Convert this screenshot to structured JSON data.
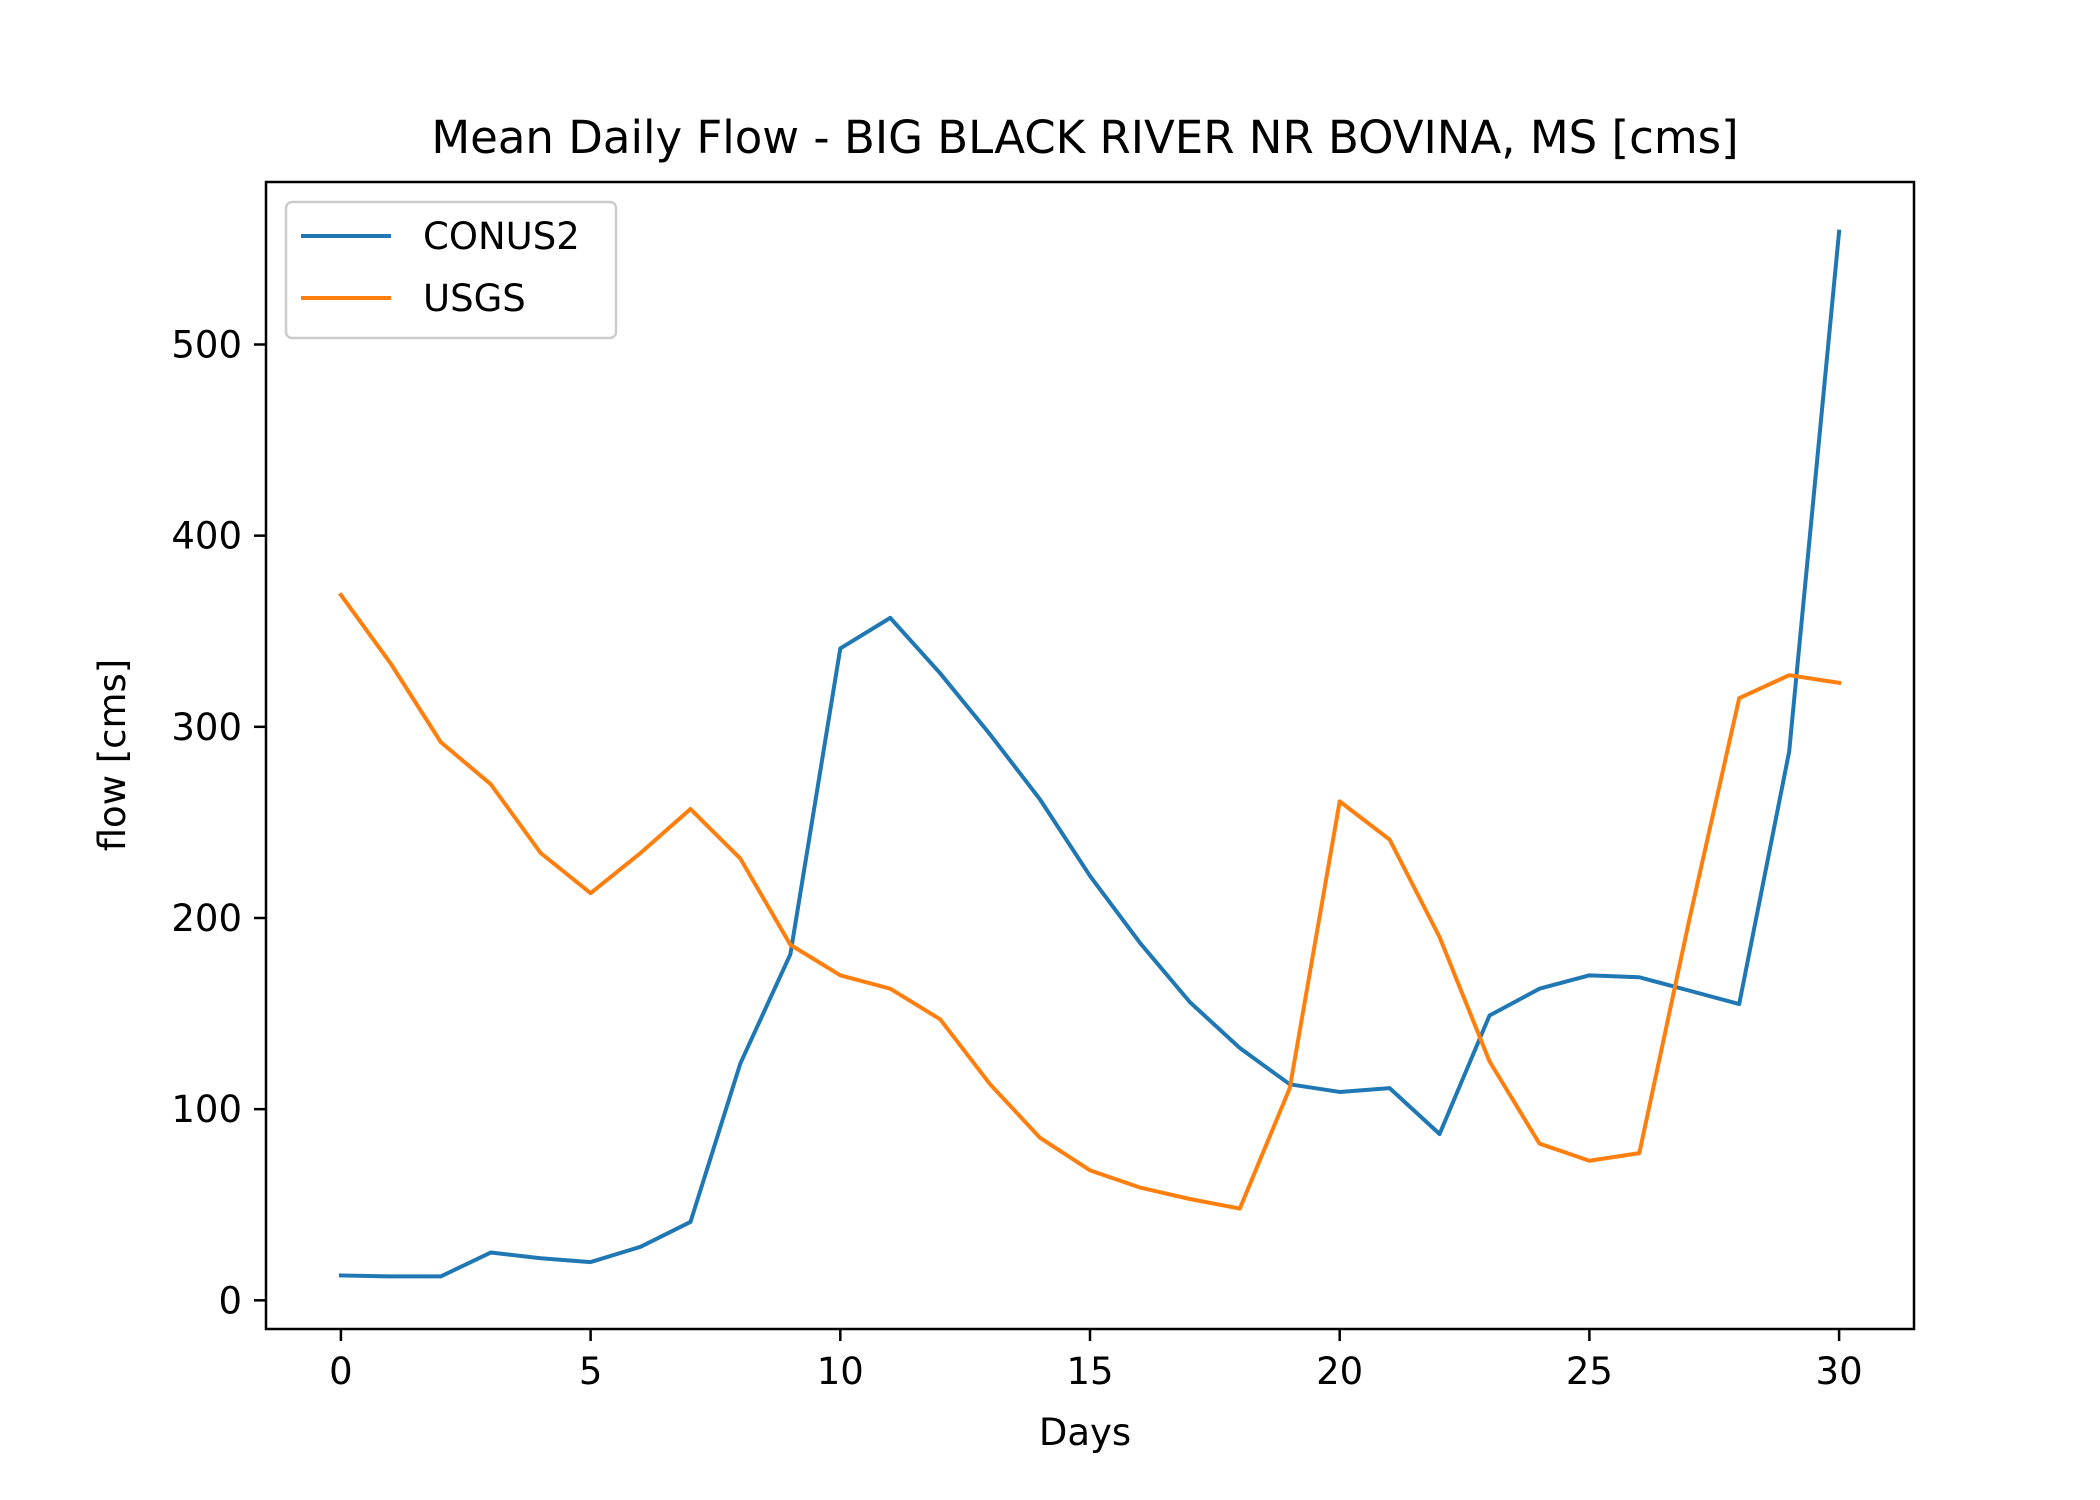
{
  "chart_data": {
    "type": "line",
    "title": "Mean Daily Flow - BIG BLACK RIVER NR BOVINA, MS [cms]",
    "xlabel": "Days",
    "ylabel": "flow [cms]",
    "xlim": [
      -1.5,
      31.5
    ],
    "ylim": [
      -15,
      585
    ],
    "xticks": [
      0,
      5,
      10,
      15,
      20,
      25,
      30
    ],
    "yticks": [
      0,
      100,
      200,
      300,
      400,
      500
    ],
    "grid": false,
    "legend_position": "top-left",
    "x": [
      0,
      1,
      2,
      3,
      4,
      5,
      6,
      7,
      8,
      9,
      10,
      11,
      12,
      13,
      14,
      15,
      16,
      17,
      18,
      19,
      20,
      21,
      22,
      23,
      24,
      25,
      26,
      27,
      28,
      29,
      30
    ],
    "series": [
      {
        "name": "CONUS2",
        "color": "#1f77b4",
        "values": [
          13,
          12.5,
          12.5,
          25,
          22,
          20,
          28,
          41,
          124,
          181,
          341,
          357,
          328,
          296,
          262,
          222,
          187,
          156,
          132,
          113,
          109,
          111,
          87,
          149,
          163,
          170,
          169,
          162,
          155,
          287,
          559
        ]
      },
      {
        "name": "USGS",
        "color": "#ff7f0e",
        "values": [
          369,
          333,
          292,
          270,
          234,
          213,
          234,
          257,
          231,
          186,
          170,
          163,
          147,
          113,
          85,
          68,
          59,
          53,
          48,
          111,
          261,
          241,
          190,
          125,
          82,
          73,
          77,
          199,
          315,
          327,
          323
        ]
      }
    ]
  }
}
